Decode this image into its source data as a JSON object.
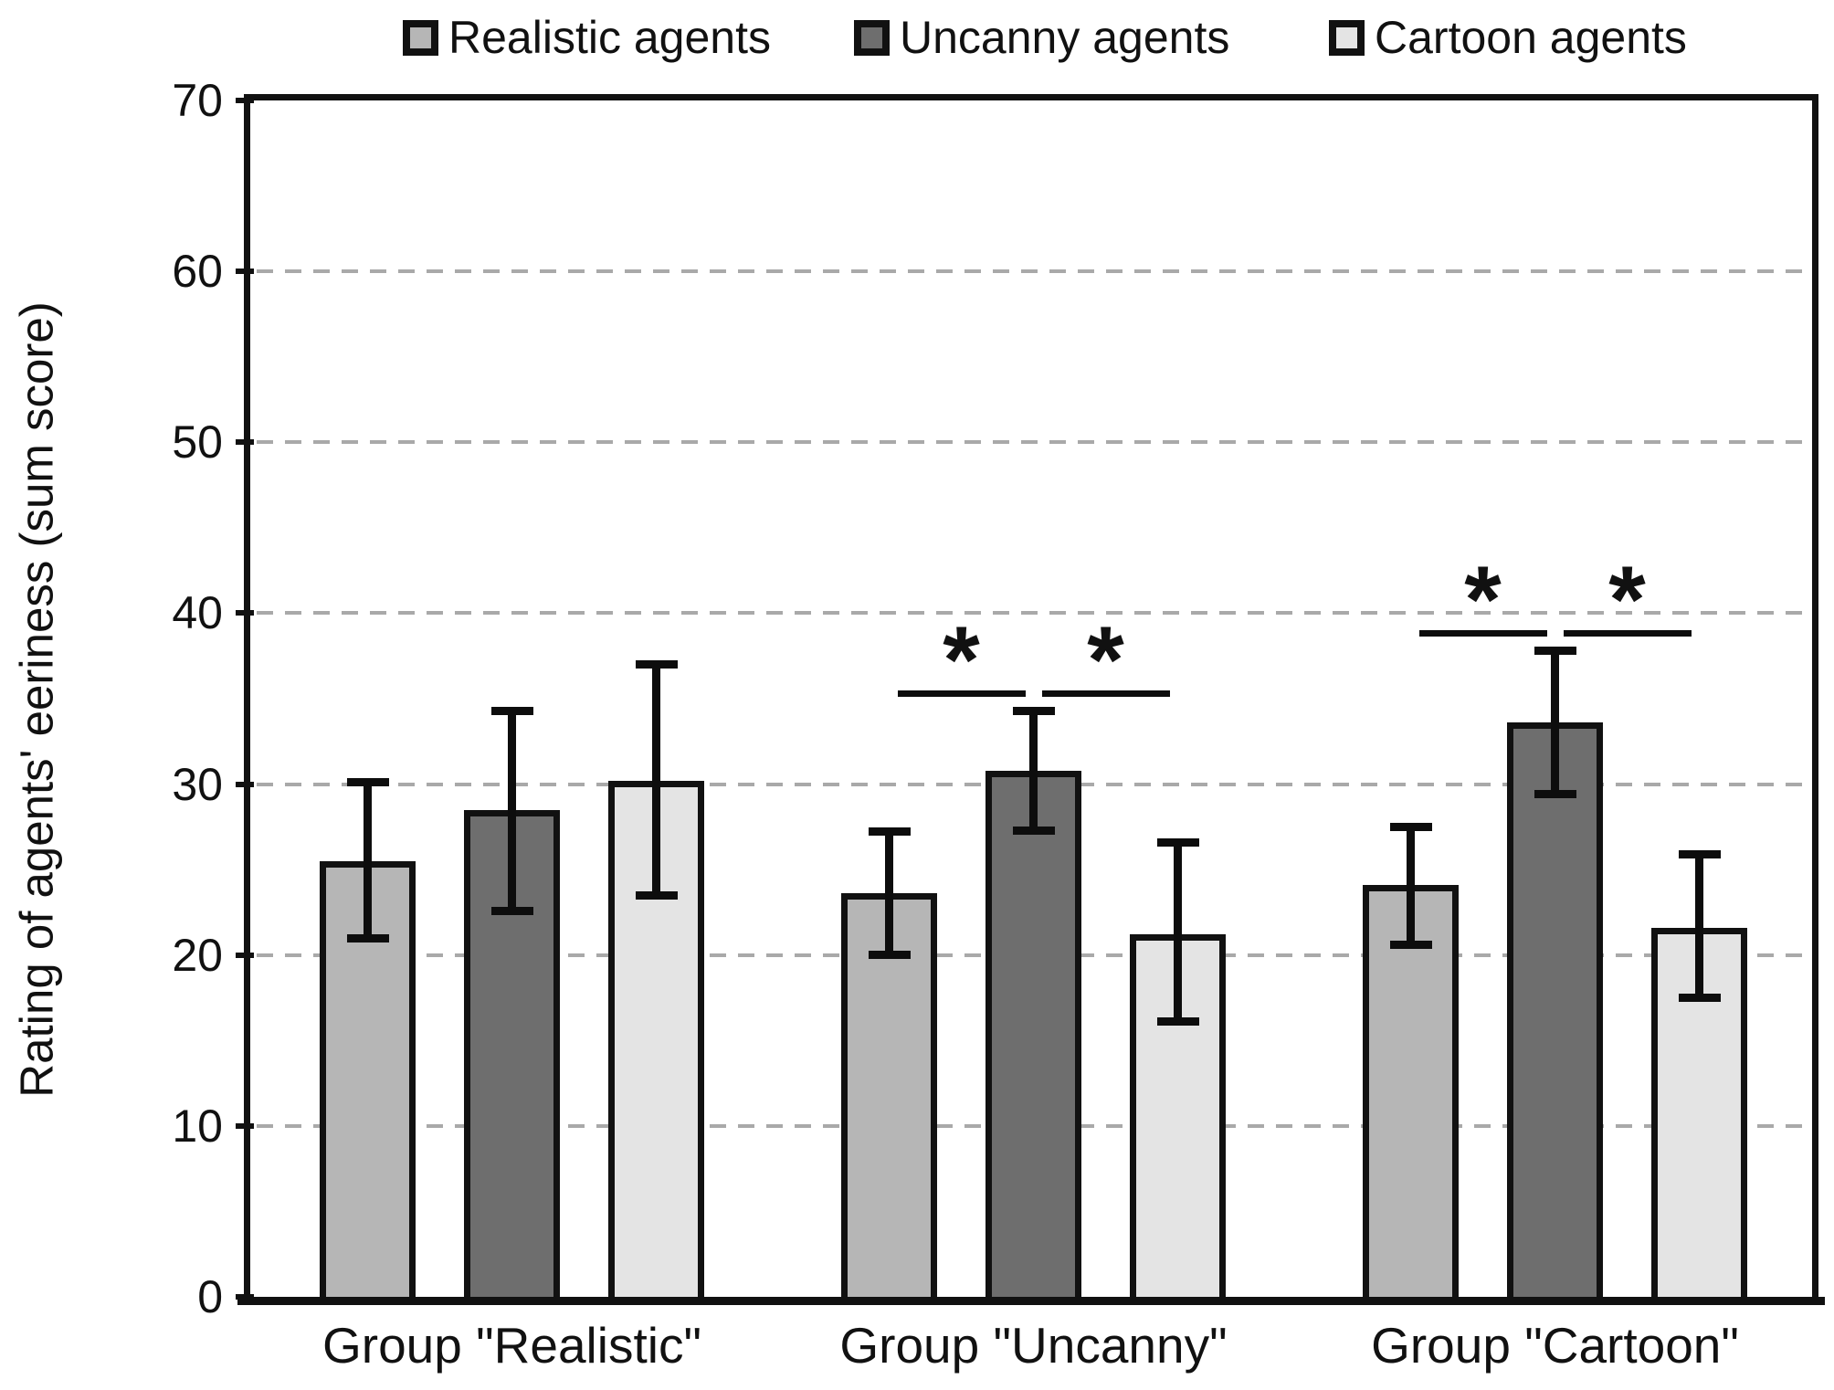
{
  "figure": {
    "background": "#ffffff",
    "ink_color": "#111111",
    "gridline_color": "#a9a9a9"
  },
  "legend": {
    "position": "top",
    "items": [
      {
        "label": "Realistic agents",
        "color": "#b6b6b6"
      },
      {
        "label": "Uncanny agents",
        "color": "#6e6e6e"
      },
      {
        "label": "Cartoon agents",
        "color": "#e4e4e4"
      }
    ]
  },
  "chart_data": {
    "type": "bar",
    "title": "",
    "xlabel": "",
    "ylabel": "Rating of agents' eeriness (sum score)",
    "ylim": [
      0,
      70
    ],
    "ytick_step": 10,
    "yticks": [
      0,
      10,
      20,
      30,
      40,
      50,
      60,
      70
    ],
    "grid": "horizontal dashed, values 10-60",
    "legend_position": "top",
    "categories": [
      "Group \"Realistic\"",
      "Group \"Uncanny\"",
      "Group \"Cartoon\""
    ],
    "series": [
      {
        "name": "Realistic agents",
        "color": "#b6b6b6",
        "values": [
          25.5,
          23.6,
          24.1
        ],
        "error_low": [
          21.0,
          20.0,
          20.6
        ],
        "error_high": [
          30.1,
          27.2,
          27.5
        ]
      },
      {
        "name": "Uncanny agents",
        "color": "#6e6e6e",
        "values": [
          28.5,
          30.8,
          33.6
        ],
        "error_low": [
          22.6,
          27.3,
          29.4
        ],
        "error_high": [
          34.3,
          34.3,
          37.8
        ]
      },
      {
        "name": "Cartoon agents",
        "color": "#e4e4e4",
        "values": [
          30.2,
          21.2,
          21.6
        ],
        "error_low": [
          23.5,
          16.1,
          17.5
        ],
        "error_high": [
          37.0,
          26.6,
          25.9
        ]
      }
    ],
    "significance_markers": [
      {
        "category_index": 1,
        "between_series": [
          0,
          1
        ],
        "symbol": "*",
        "line_value": 35.5
      },
      {
        "category_index": 1,
        "between_series": [
          1,
          2
        ],
        "symbol": "*",
        "line_value": 35.5
      },
      {
        "category_index": 2,
        "between_series": [
          0,
          1
        ],
        "symbol": "*",
        "line_value": 39.0
      },
      {
        "category_index": 2,
        "between_series": [
          1,
          2
        ],
        "symbol": "*",
        "line_value": 39.0
      }
    ]
  }
}
